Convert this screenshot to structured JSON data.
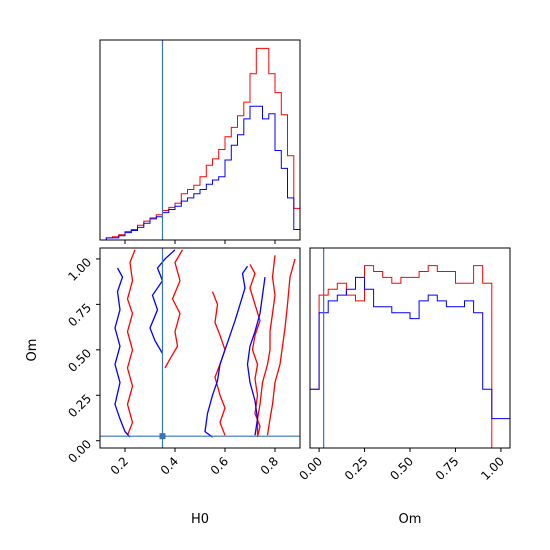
{
  "chart_data": {
    "type": "corner",
    "parameters": [
      "H0",
      "Om"
    ],
    "truth": {
      "H0": 0.35,
      "Om": 0.025
    },
    "truth_color": "#3b75af",
    "series": [
      {
        "name": "",
        "color": "#ff0000"
      },
      {
        "name": "",
        "color": "#0000ff"
      }
    ],
    "hist_H0": {
      "edges": [
        0.1,
        0.125,
        0.15,
        0.175,
        0.2,
        0.225,
        0.25,
        0.275,
        0.3,
        0.325,
        0.35,
        0.375,
        0.4,
        0.425,
        0.45,
        0.475,
        0.5,
        0.525,
        0.55,
        0.575,
        0.6,
        0.625,
        0.65,
        0.675,
        0.7,
        0.725,
        0.75,
        0.775,
        0.8,
        0.825,
        0.85,
        0.875,
        0.9
      ],
      "red": [
        0,
        2,
        3,
        5,
        8,
        10,
        14,
        18,
        21,
        24,
        28,
        31,
        35,
        44,
        48,
        52,
        60,
        71,
        77,
        86,
        98,
        107,
        118,
        131,
        158,
        182,
        182,
        158,
        140,
        119,
        80,
        30
      ],
      "blue": [
        0,
        2,
        2,
        4,
        7,
        9,
        12,
        16,
        20,
        22,
        26,
        29,
        32,
        37,
        40,
        44,
        48,
        53,
        57,
        60,
        76,
        90,
        100,
        115,
        127,
        127,
        115,
        120,
        85,
        68,
        40,
        10
      ],
      "ylim": [
        0,
        190
      ]
    },
    "hist_Om": {
      "edges": [
        -0.05,
        0.0,
        0.05,
        0.1,
        0.15,
        0.2,
        0.25,
        0.3,
        0.35,
        0.4,
        0.45,
        0.5,
        0.55,
        0.6,
        0.65,
        0.7,
        0.75,
        0.8,
        0.85,
        0.9,
        0.95,
        1.0,
        1.05
      ],
      "red": [
        10,
        26,
        27,
        28,
        26,
        25,
        31,
        30,
        29,
        28,
        29,
        29,
        30,
        31,
        30,
        30,
        28,
        28,
        31,
        28,
        0,
        0
      ],
      "blue": [
        10,
        23,
        25,
        26,
        27,
        29,
        27,
        24,
        24,
        23,
        23,
        22,
        25,
        26,
        25,
        24,
        24,
        25,
        23,
        10,
        5,
        5
      ],
      "ylim": [
        0,
        34
      ]
    },
    "contour_lines": [
      {
        "series": 0,
        "points": [
          [
            0.24,
            1.05
          ],
          [
            0.22,
            0.98
          ],
          [
            0.23,
            0.88
          ],
          [
            0.21,
            0.78
          ],
          [
            0.23,
            0.7
          ],
          [
            0.21,
            0.6
          ],
          [
            0.23,
            0.5
          ],
          [
            0.21,
            0.4
          ],
          [
            0.23,
            0.3
          ],
          [
            0.21,
            0.2
          ],
          [
            0.23,
            0.1
          ],
          [
            0.21,
            0.03
          ]
        ]
      },
      {
        "series": 0,
        "points": [
          [
            0.43,
            1.05
          ],
          [
            0.4,
            0.98
          ],
          [
            0.42,
            0.88
          ],
          [
            0.39,
            0.78
          ],
          [
            0.42,
            0.7
          ],
          [
            0.4,
            0.6
          ],
          [
            0.41,
            0.52
          ],
          [
            0.38,
            0.45
          ],
          [
            0.36,
            0.4
          ]
        ]
      },
      {
        "series": 0,
        "points": [
          [
            0.55,
            0.82
          ],
          [
            0.57,
            0.75
          ],
          [
            0.56,
            0.65
          ],
          [
            0.58,
            0.58
          ],
          [
            0.6,
            0.5
          ],
          [
            0.58,
            0.42
          ],
          [
            0.56,
            0.35
          ],
          [
            0.58,
            0.25
          ],
          [
            0.6,
            0.18
          ],
          [
            0.58,
            0.1
          ],
          [
            0.6,
            0.03
          ]
        ]
      },
      {
        "series": 0,
        "points": [
          [
            0.7,
            0.97
          ],
          [
            0.72,
            0.92
          ],
          [
            0.7,
            0.84
          ],
          [
            0.72,
            0.75
          ],
          [
            0.74,
            0.66
          ],
          [
            0.72,
            0.58
          ],
          [
            0.71,
            0.5
          ],
          [
            0.73,
            0.42
          ],
          [
            0.72,
            0.34
          ],
          [
            0.73,
            0.25
          ],
          [
            0.72,
            0.15
          ],
          [
            0.74,
            0.08
          ],
          [
            0.73,
            0.02
          ]
        ]
      },
      {
        "series": 0,
        "points": [
          [
            0.8,
            1.02
          ],
          [
            0.79,
            0.9
          ],
          [
            0.8,
            0.8
          ],
          [
            0.79,
            0.7
          ],
          [
            0.78,
            0.6
          ],
          [
            0.78,
            0.5
          ],
          [
            0.77,
            0.42
          ],
          [
            0.75,
            0.32
          ],
          [
            0.74,
            0.2
          ],
          [
            0.73,
            0.12
          ],
          [
            0.73,
            0.03
          ]
        ]
      },
      {
        "series": 0,
        "points": [
          [
            0.88,
            1.0
          ],
          [
            0.86,
            0.9
          ],
          [
            0.85,
            0.75
          ],
          [
            0.84,
            0.62
          ],
          [
            0.83,
            0.52
          ],
          [
            0.82,
            0.42
          ],
          [
            0.8,
            0.32
          ],
          [
            0.79,
            0.2
          ],
          [
            0.78,
            0.12
          ],
          [
            0.77,
            0.03
          ]
        ]
      },
      {
        "series": 1,
        "points": [
          [
            0.17,
            0.95
          ],
          [
            0.19,
            0.9
          ],
          [
            0.17,
            0.82
          ],
          [
            0.18,
            0.72
          ],
          [
            0.16,
            0.62
          ],
          [
            0.18,
            0.52
          ],
          [
            0.16,
            0.42
          ],
          [
            0.18,
            0.32
          ],
          [
            0.16,
            0.2
          ],
          [
            0.18,
            0.12
          ],
          [
            0.2,
            0.05
          ],
          [
            0.22,
            0.02
          ]
        ]
      },
      {
        "series": 1,
        "points": [
          [
            0.4,
            1.05
          ],
          [
            0.36,
            1.0
          ],
          [
            0.33,
            0.95
          ],
          [
            0.35,
            0.88
          ],
          [
            0.31,
            0.8
          ],
          [
            0.33,
            0.72
          ],
          [
            0.3,
            0.62
          ],
          [
            0.32,
            0.55
          ],
          [
            0.35,
            0.48
          ]
        ]
      },
      {
        "series": 1,
        "points": [
          [
            0.69,
            0.96
          ],
          [
            0.67,
            0.92
          ],
          [
            0.68,
            0.84
          ],
          [
            0.66,
            0.75
          ],
          [
            0.64,
            0.66
          ],
          [
            0.62,
            0.58
          ],
          [
            0.6,
            0.5
          ],
          [
            0.58,
            0.42
          ],
          [
            0.57,
            0.33
          ],
          [
            0.55,
            0.25
          ],
          [
            0.53,
            0.15
          ],
          [
            0.52,
            0.05
          ],
          [
            0.55,
            0.02
          ]
        ]
      },
      {
        "series": 1,
        "points": [
          [
            0.76,
            0.9
          ],
          [
            0.75,
            0.8
          ],
          [
            0.74,
            0.7
          ],
          [
            0.72,
            0.6
          ],
          [
            0.7,
            0.52
          ],
          [
            0.69,
            0.42
          ],
          [
            0.7,
            0.32
          ],
          [
            0.72,
            0.22
          ],
          [
            0.73,
            0.12
          ],
          [
            0.72,
            0.03
          ]
        ]
      }
    ],
    "x_ticks_H0": [
      "0.2",
      "0.4",
      "0.6",
      "0.8"
    ],
    "y_ticks_Om": [
      "0.00",
      "0.25",
      "0.50",
      "0.75",
      "1.00"
    ],
    "x_ticks_Om": [
      "0.00",
      "0.25",
      "0.50",
      "0.75",
      "1.00"
    ],
    "xlabel_H0": "H0",
    "ylabel_Om": "Om",
    "xlabel_Om": "Om",
    "grid": false
  }
}
